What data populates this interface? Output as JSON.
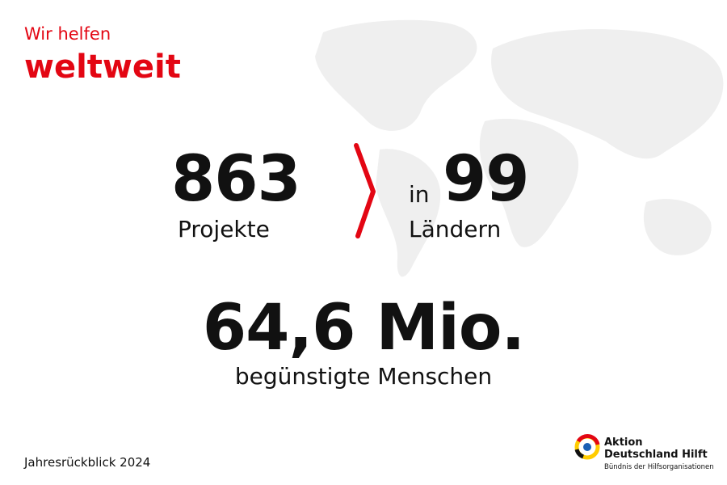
{
  "header": {
    "kicker": "Wir helfen",
    "title": "weltweit"
  },
  "stats": {
    "projects": {
      "value": "863",
      "label": "Projekte"
    },
    "countries": {
      "prefix": "in",
      "value": "99",
      "label": "Ländern"
    },
    "people": {
      "value": "64,6 Mio.",
      "label": "begünstigte Menschen"
    }
  },
  "footer": {
    "caption": "Jahresrückblick 2024",
    "logo": {
      "line1": "Aktion",
      "line2": "Deutschland Hilft",
      "tagline": "Bündnis der Hilfsorganisationen"
    }
  }
}
